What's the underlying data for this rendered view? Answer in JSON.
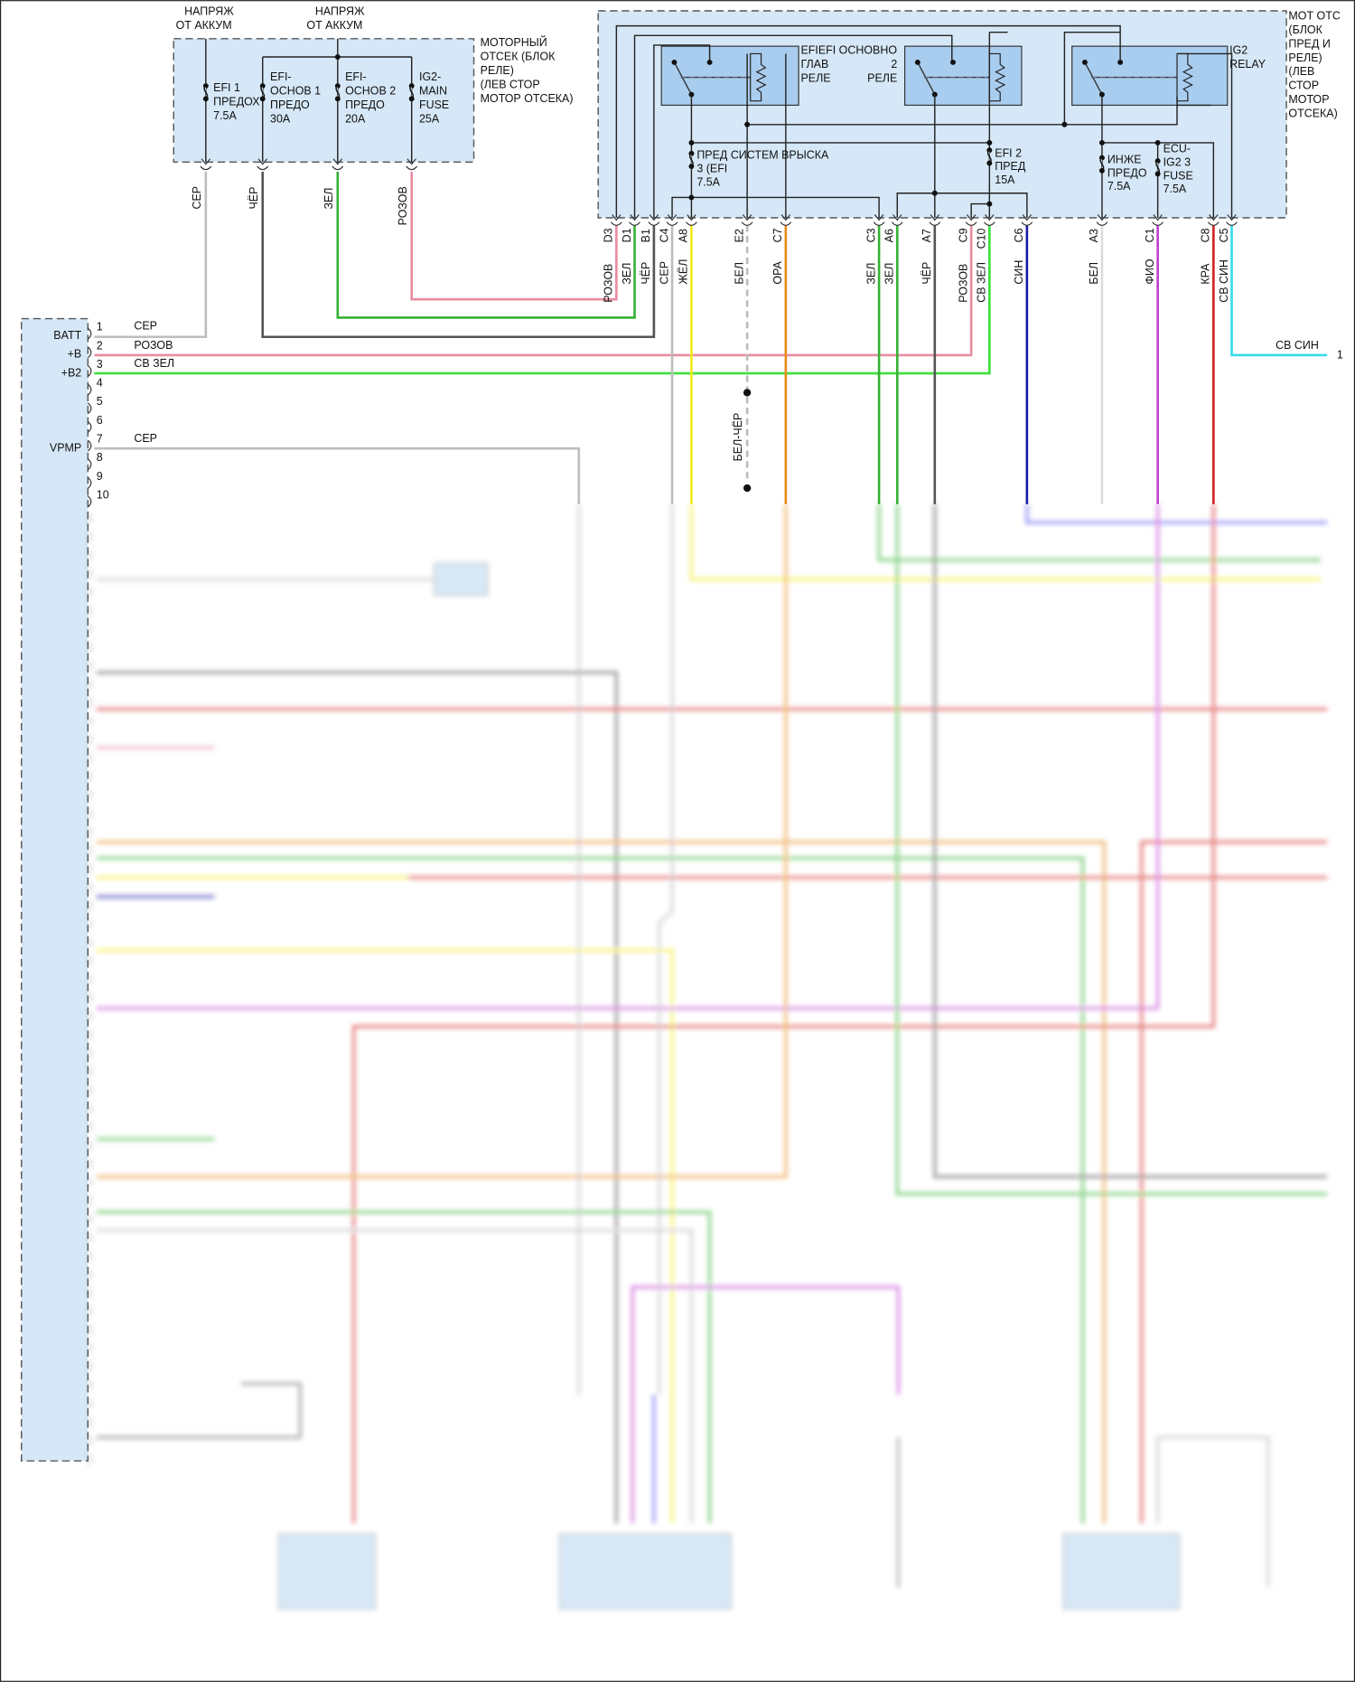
{
  "colors": {
    "СЕР": "#bdbdbd",
    "ЧЁР": "#555555",
    "ЗЕЛ": "#33b233",
    "РОЗОВ": "#e88ca0",
    "СВ ЗЕЛ": "#3be03b",
    "ЖЁЛ": "#f2ea12",
    "БЕЛ": "#dddddd",
    "ОРА": "#e88a1a",
    "СИН": "#1a1aa8",
    "ФИО": "#c03cd0",
    "КРА": "#d42020",
    "СВ СИН": "#33dde8",
    "box_fill": "#d6e8f7",
    "relay_fill": "#a9cdef"
  },
  "fuse_block": {
    "supply_labels": [
      "НАПРЯЖ",
      "ОТ АККУМ"
    ],
    "title_lines": [
      "МОТОРНЫЙ",
      "ОТСЕК (БЛОК",
      "РЕЛЕ)",
      "(ЛЕВ СТОР",
      "МОТОР ОТСЕКА)"
    ],
    "fuses": [
      {
        "lines": [
          "EFI 1",
          "ПРЕДОХ",
          "7.5A"
        ],
        "wire": "СЕР"
      },
      {
        "lines": [
          "EFI-",
          "ОСНОВ 1",
          "ПРЕДО",
          "30A"
        ],
        "wire": "ЧЁР"
      },
      {
        "lines": [
          "EFI-",
          "ОСНОВ 2",
          "ПРЕДО",
          "20A"
        ],
        "wire": "ЗЕЛ"
      },
      {
        "lines": [
          "IG2-",
          "MAIN",
          "FUSE",
          "25A"
        ],
        "wire": "РОЗОВ"
      }
    ]
  },
  "relay_block": {
    "title_lines": [
      "МОТ ОТС",
      "(БЛОК",
      "ПРЕД И",
      "РЕЛЕ)",
      "(ЛЕВ",
      "СТОР",
      "МОТОР",
      "ОТСЕКА)"
    ],
    "relays": [
      {
        "lines": [
          "EFIEFI ОСНОВНО",
          "ГЛАВ",
          "РЕЛЕ"
        ]
      },
      {
        "lines": [
          "2",
          "РЕЛЕ"
        ]
      },
      {
        "lines": [
          "IG2",
          "RELAY"
        ]
      }
    ],
    "fuses": [
      {
        "lines": [
          "ПРЕД СИСТЕМ ВРЫСКА",
          "3 (EFI",
          "7.5A"
        ]
      },
      {
        "lines": [
          "EFI 2",
          "ПРЕД",
          "15A"
        ]
      },
      {
        "lines": [
          "ИНЖЕ",
          "ПРЕДО",
          "7.5A"
        ]
      },
      {
        "lines": [
          "ECU-",
          "IG2 3",
          "FUSE",
          "7.5A"
        ]
      }
    ],
    "pins": [
      {
        "pin": "D3",
        "wire": "РОЗОВ"
      },
      {
        "pin": "D1",
        "wire": "ЗЕЛ"
      },
      {
        "pin": "B1",
        "wire": "ЧЁР"
      },
      {
        "pin": "C4",
        "wire": "СЕР"
      },
      {
        "pin": "A8",
        "wire": "ЖЁЛ"
      },
      {
        "pin": "E2",
        "wire": "БЕЛ"
      },
      {
        "pin": "C7",
        "wire": "ОРА"
      },
      {
        "pin": "C3",
        "wire": "ЗЕЛ"
      },
      {
        "pin": "A6",
        "wire": "ЗЕЛ"
      },
      {
        "pin": "A7",
        "wire": "ЧЁР"
      },
      {
        "pin": "C9",
        "wire": "РОЗОВ"
      },
      {
        "pin": "C10",
        "wire": "СВ ЗЕЛ"
      },
      {
        "pin": "C6",
        "wire": "СИН"
      },
      {
        "pin": "A3",
        "wire": "БЕЛ"
      },
      {
        "pin": "C1",
        "wire": "ФИО"
      },
      {
        "pin": "C8",
        "wire": "КРА"
      },
      {
        "pin": "C5",
        "wire": "СВ СИН"
      }
    ]
  },
  "ecu_connector": {
    "pins": [
      "1",
      "2",
      "3",
      "4",
      "5",
      "6",
      "7",
      "8",
      "9",
      "10"
    ],
    "terminals": [
      {
        "name": "BATT",
        "pin": "1",
        "wire": "СЕР"
      },
      {
        "name": "+B",
        "pin": "2",
        "wire": "РОЗОВ"
      },
      {
        "name": "+B2",
        "pin": "3",
        "wire": "СВ ЗЕЛ"
      },
      {
        "name": "VPMP",
        "pin": "7",
        "wire": "СЕР"
      }
    ]
  },
  "ground_wire": "БЕЛ-ЧЁР",
  "right_output": {
    "wire": "СВ СИН",
    "pin": "1"
  }
}
